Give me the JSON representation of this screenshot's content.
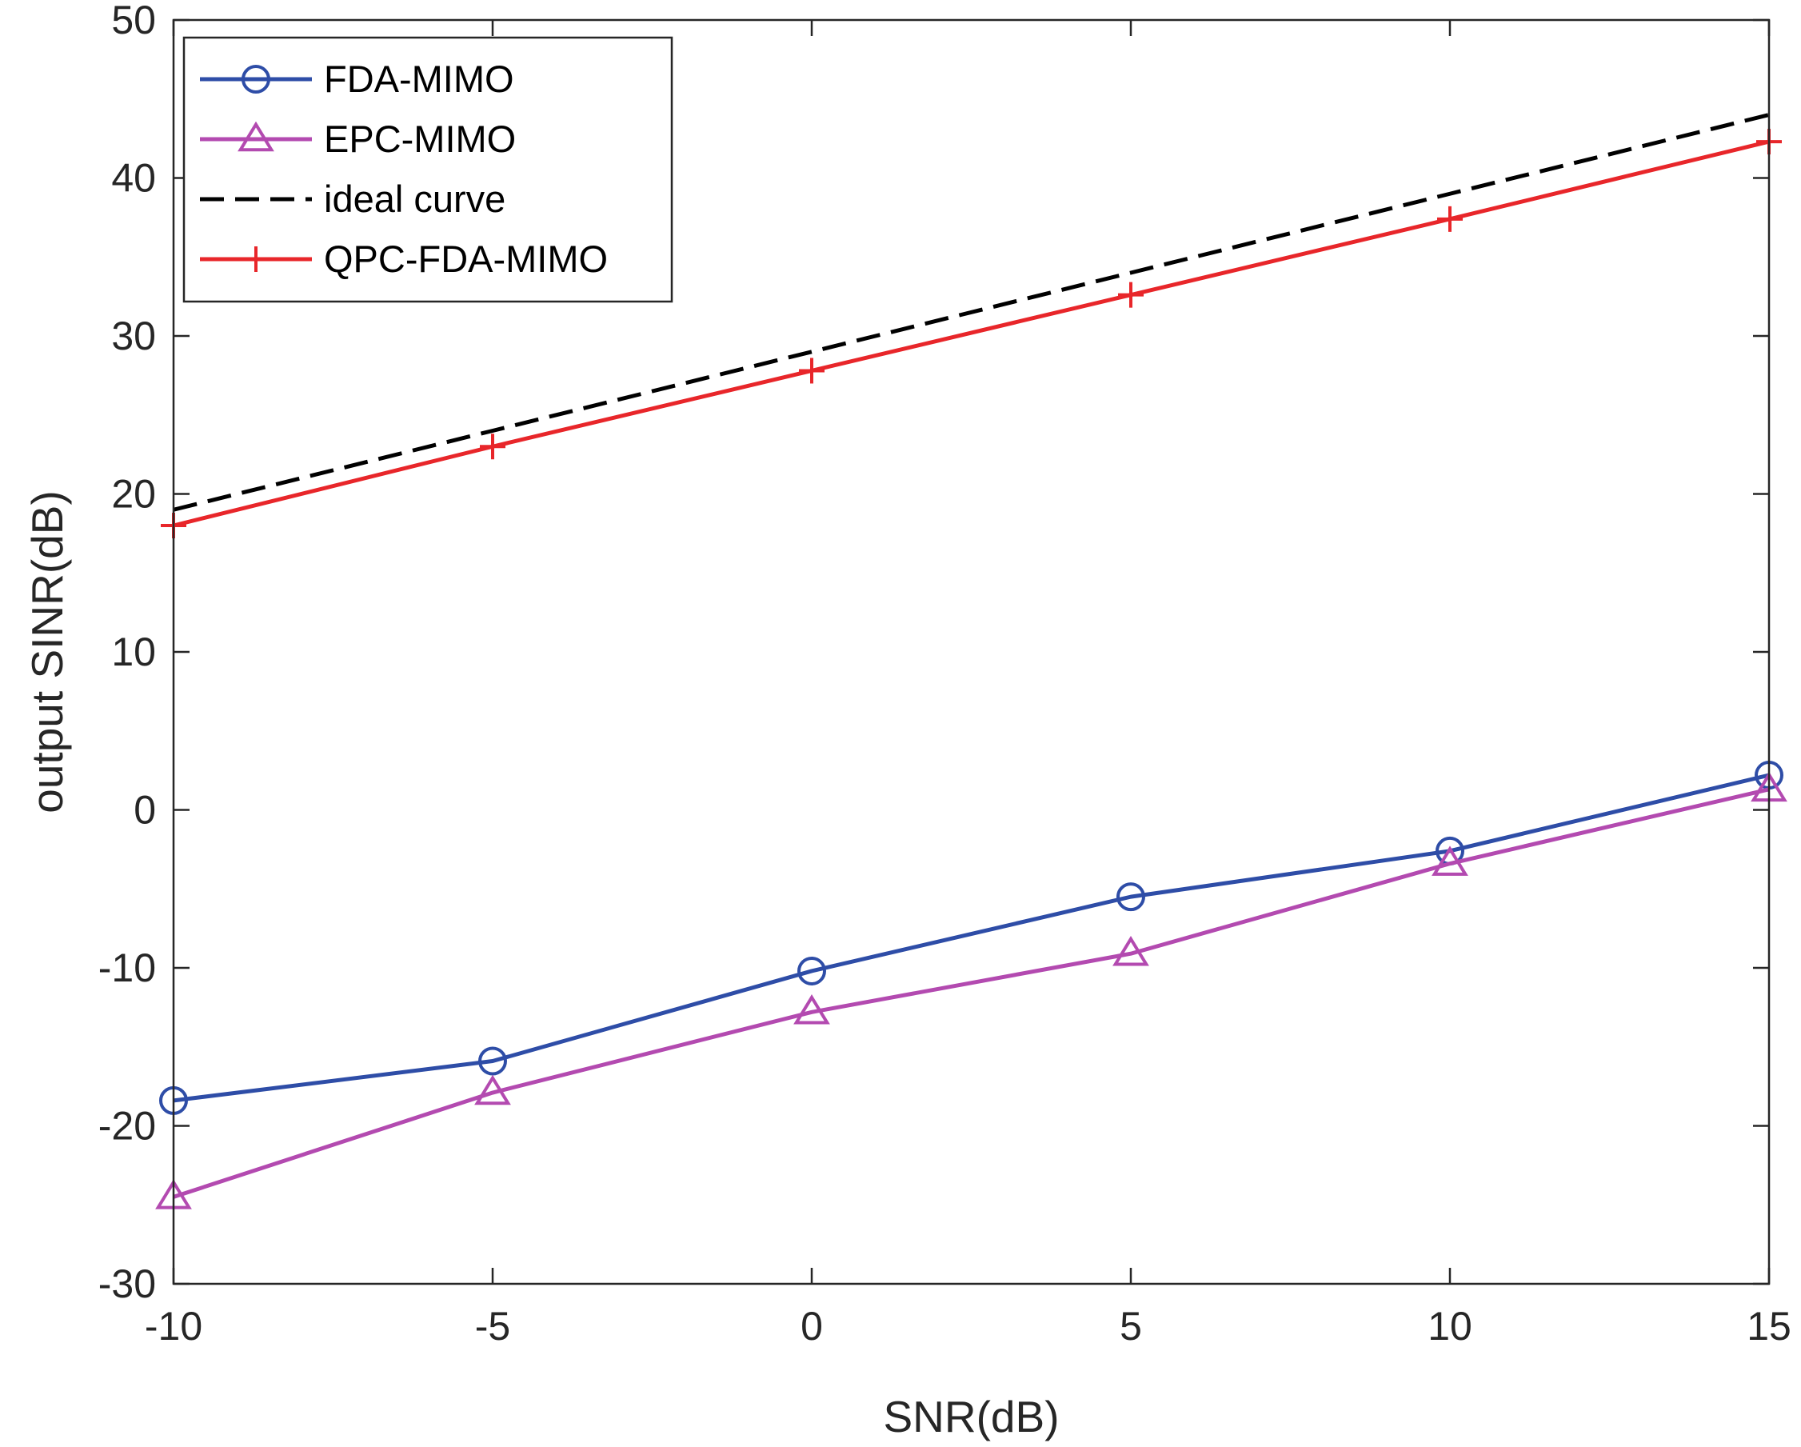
{
  "chart_data": {
    "type": "line",
    "title": "",
    "xlabel": "SNR(dB)",
    "ylabel": "output SINR(dB)",
    "xlim": [
      -10,
      15
    ],
    "ylim": [
      -30,
      50
    ],
    "xticks": [
      -10,
      -5,
      0,
      5,
      10,
      15
    ],
    "yticks": [
      -30,
      -20,
      -10,
      0,
      10,
      20,
      30,
      40,
      50
    ],
    "xtick_labels": [
      "-10",
      "-5",
      "0",
      "5",
      "10",
      "15"
    ],
    "ytick_labels": [
      "-30",
      "-20",
      "-10",
      "0",
      "10",
      "20",
      "30",
      "40",
      "50"
    ],
    "grid": false,
    "legend_position": "top-left",
    "x": [
      -10,
      -5,
      0,
      5,
      10,
      15
    ],
    "series": [
      {
        "name": "FDA-MIMO",
        "values": [
          -18.4,
          -15.9,
          -10.2,
          -5.5,
          -2.6,
          2.2
        ],
        "color": "#2E4DA7",
        "marker": "circle",
        "dash": "solid"
      },
      {
        "name": "EPC-MIMO",
        "values": [
          -24.5,
          -17.9,
          -12.8,
          -9.1,
          -3.4,
          1.3
        ],
        "color": "#B34AB0",
        "marker": "triangle",
        "dash": "solid"
      },
      {
        "name": "ideal curve",
        "values": [
          19,
          24,
          29,
          34,
          39,
          44
        ],
        "color": "#000000",
        "marker": "none",
        "dash": "dashed"
      },
      {
        "name": "QPC-FDA-MIMO",
        "values": [
          18,
          23,
          27.8,
          32.6,
          37.4,
          42.3
        ],
        "color": "#E8262A",
        "marker": "plus",
        "dash": "solid"
      }
    ]
  }
}
